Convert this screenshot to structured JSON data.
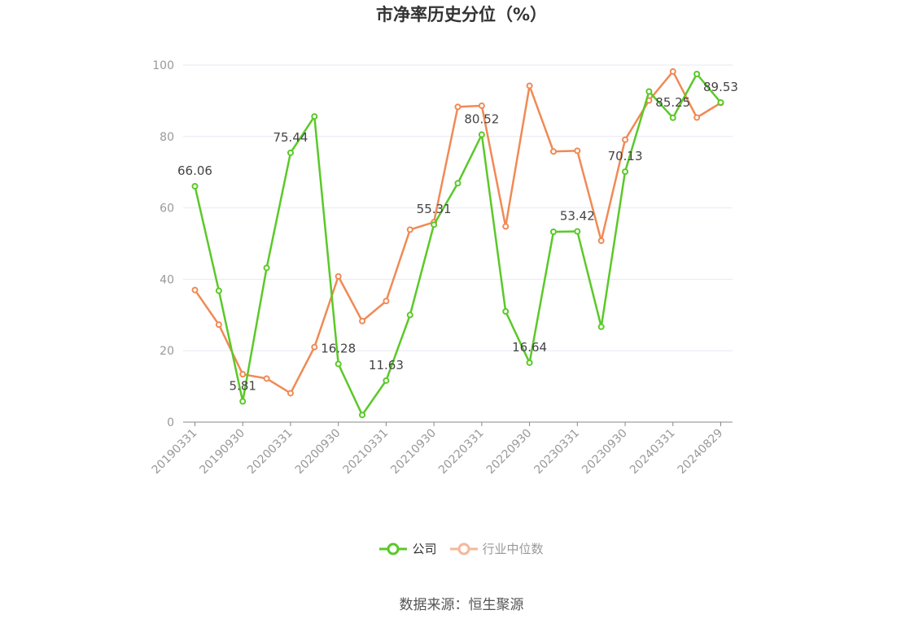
{
  "title": "市净率历史分位（%）",
  "source": "数据来源：恒生聚源",
  "legend": {
    "company": "公司",
    "industry": "行业中位数"
  },
  "colors": {
    "company": "#5ac928",
    "industry": "#f08a55",
    "grid": "#e6e9f2",
    "axis": "#888888"
  },
  "chart_data": {
    "type": "line",
    "title": "市净率历史分位（%）",
    "ylim": [
      0,
      100
    ],
    "yticks": [
      0,
      20,
      40,
      60,
      80,
      100
    ],
    "x": [
      "20190331",
      "20190630",
      "20190930",
      "20191231",
      "20200331",
      "20200630",
      "20200930",
      "20201231",
      "20210331",
      "20210630",
      "20210930",
      "20211231",
      "20220331",
      "20220630",
      "20220930",
      "20221231",
      "20230331",
      "20230630",
      "20230930",
      "20231231",
      "20240331",
      "20240630",
      "20240829"
    ],
    "x_tick_labels": [
      "20190331",
      "20190930",
      "20200331",
      "20200930",
      "20210331",
      "20210930",
      "20220331",
      "20220930",
      "20230331",
      "20230930",
      "20240331",
      "20240829"
    ],
    "series": [
      {
        "name": "公司",
        "values": [
          66.06,
          36.8,
          5.81,
          43.2,
          75.44,
          85.6,
          16.28,
          2.0,
          11.63,
          30.0,
          55.31,
          66.9,
          80.52,
          31.0,
          16.64,
          53.3,
          53.42,
          26.7,
          70.13,
          92.6,
          85.25,
          97.5,
          89.53
        ],
        "labels": [
          "66.06",
          null,
          "5.81",
          null,
          "75.44",
          null,
          "16.28",
          null,
          "11.63",
          null,
          "55.31",
          null,
          "80.52",
          null,
          "16.64",
          null,
          "53.42",
          null,
          "70.13",
          null,
          "85.25",
          null,
          "89.53"
        ]
      },
      {
        "name": "行业中位数",
        "values": [
          37.0,
          27.3,
          13.4,
          12.2,
          8.1,
          21.0,
          40.8,
          28.3,
          33.9,
          53.9,
          56.0,
          88.3,
          88.6,
          54.8,
          94.2,
          75.8,
          76.0,
          50.8,
          79.1,
          90.1,
          98.2,
          85.3,
          89.4
        ]
      }
    ],
    "grid": true,
    "legend_position": "bottom"
  }
}
